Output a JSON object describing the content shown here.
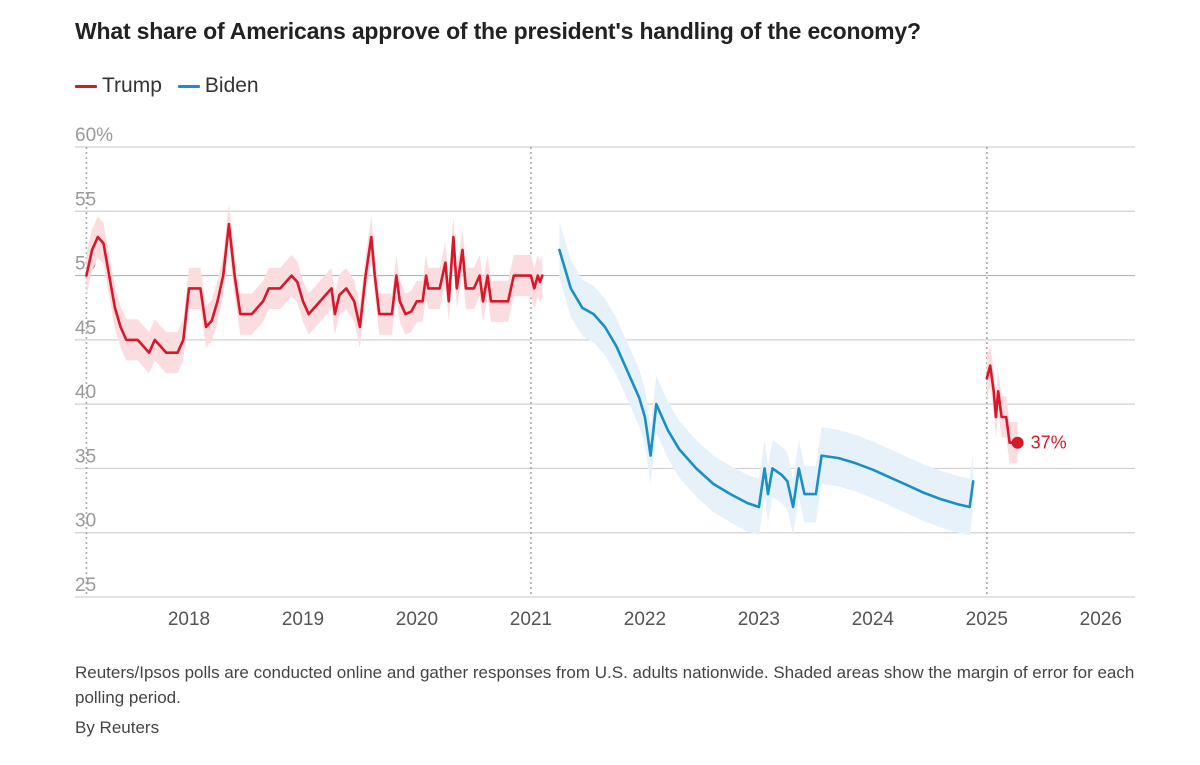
{
  "title": "What share of Americans approve of the president's handling of the economy?",
  "legend": [
    {
      "label": "Trump",
      "color": "#d7182a"
    },
    {
      "label": "Biden",
      "color": "#1a8fc4"
    }
  ],
  "footnote": "Reuters/Ipsos polls are conducted online and gather responses from U.S. adults nationwide. Shaded areas show the margin of error for each polling period.",
  "byline": "By Reuters",
  "chart_data": {
    "type": "line",
    "title": "What share of Americans approve of the president's handling of the economy?",
    "xlabel": "",
    "ylabel": "",
    "xlim": [
      2017.0,
      2026.3
    ],
    "ylim": [
      25,
      60
    ],
    "y_ticks": [
      {
        "value": 60,
        "label": "60%"
      },
      {
        "value": 55,
        "label": "55"
      },
      {
        "value": 50,
        "label": "50"
      },
      {
        "value": 45,
        "label": "45"
      },
      {
        "value": 40,
        "label": "40"
      },
      {
        "value": 35,
        "label": "35"
      },
      {
        "value": 30,
        "label": "30"
      },
      {
        "value": 25,
        "label": "25"
      }
    ],
    "x_ticks": [
      {
        "value": 2018,
        "label": "2018"
      },
      {
        "value": 2019,
        "label": "2019"
      },
      {
        "value": 2020,
        "label": "2020"
      },
      {
        "value": 2021,
        "label": "2021"
      },
      {
        "value": 2022,
        "label": "2022"
      },
      {
        "value": 2023,
        "label": "2023"
      },
      {
        "value": 2024,
        "label": "2024"
      },
      {
        "value": 2025,
        "label": "2025"
      },
      {
        "value": 2026,
        "label": "2026"
      }
    ],
    "grid": true,
    "legend_position": "top-left",
    "term_markers": [
      2017.1,
      2021.0,
      2025.0
    ],
    "end_label": {
      "series": "Trump",
      "x": 2025.27,
      "y": 37,
      "text": "37%"
    },
    "series": [
      {
        "name": "Trump",
        "color": "#d7182a",
        "band_color": "#fbdcdf",
        "margin": 1.6,
        "segments": [
          [
            [
              2017.1,
              50
            ],
            [
              2017.15,
              52
            ],
            [
              2017.2,
              53
            ],
            [
              2017.25,
              52.5
            ],
            [
              2017.3,
              50
            ],
            [
              2017.35,
              47.5
            ],
            [
              2017.4,
              46
            ],
            [
              2017.45,
              45
            ],
            [
              2017.55,
              45
            ],
            [
              2017.6,
              44.5
            ],
            [
              2017.65,
              44
            ],
            [
              2017.7,
              45
            ],
            [
              2017.75,
              44.5
            ],
            [
              2017.8,
              44
            ],
            [
              2017.9,
              44
            ],
            [
              2017.95,
              45
            ],
            [
              2018.0,
              49
            ],
            [
              2018.05,
              49
            ],
            [
              2018.1,
              49
            ],
            [
              2018.15,
              46
            ],
            [
              2018.2,
              46.5
            ],
            [
              2018.25,
              48
            ],
            [
              2018.3,
              50
            ],
            [
              2018.35,
              54
            ],
            [
              2018.4,
              50
            ],
            [
              2018.45,
              47
            ],
            [
              2018.55,
              47
            ],
            [
              2018.65,
              48
            ],
            [
              2018.7,
              49
            ],
            [
              2018.8,
              49
            ],
            [
              2018.9,
              50
            ],
            [
              2018.95,
              49.5
            ],
            [
              2019.0,
              48
            ],
            [
              2019.05,
              47
            ],
            [
              2019.15,
              48
            ],
            [
              2019.25,
              49
            ],
            [
              2019.28,
              47
            ],
            [
              2019.32,
              48.5
            ],
            [
              2019.38,
              49
            ],
            [
              2019.45,
              48
            ],
            [
              2019.5,
              46
            ],
            [
              2019.55,
              50
            ],
            [
              2019.6,
              53
            ],
            [
              2019.63,
              50
            ],
            [
              2019.67,
              47
            ],
            [
              2019.72,
              47
            ],
            [
              2019.78,
              47
            ],
            [
              2019.82,
              50
            ],
            [
              2019.85,
              48
            ],
            [
              2019.9,
              47
            ],
            [
              2019.95,
              47.2
            ],
            [
              2020.0,
              48
            ],
            [
              2020.05,
              48
            ],
            [
              2020.08,
              50
            ],
            [
              2020.1,
              49
            ],
            [
              2020.2,
              49
            ],
            [
              2020.25,
              51
            ],
            [
              2020.28,
              48
            ],
            [
              2020.32,
              53
            ],
            [
              2020.35,
              49
            ],
            [
              2020.4,
              52
            ],
            [
              2020.43,
              49
            ],
            [
              2020.5,
              49
            ],
            [
              2020.55,
              50
            ],
            [
              2020.58,
              48
            ],
            [
              2020.62,
              50
            ],
            [
              2020.65,
              48
            ],
            [
              2020.8,
              48
            ],
            [
              2020.85,
              50
            ],
            [
              2020.95,
              50
            ],
            [
              2021.0,
              50
            ],
            [
              2021.03,
              49
            ],
            [
              2021.06,
              50
            ],
            [
              2021.08,
              49.5
            ],
            [
              2021.1,
              50
            ]
          ],
          [
            [
              2025.0,
              42
            ],
            [
              2025.03,
              43
            ],
            [
              2025.06,
              41
            ],
            [
              2025.08,
              39
            ],
            [
              2025.1,
              41
            ],
            [
              2025.13,
              39
            ],
            [
              2025.17,
              39
            ],
            [
              2025.2,
              37
            ],
            [
              2025.27,
              37
            ]
          ]
        ]
      },
      {
        "name": "Biden",
        "color": "#1a8fc4",
        "band_color": "#e6f1fa",
        "margin": 2.2,
        "segments": [
          [
            [
              2021.25,
              52
            ],
            [
              2021.35,
              49
            ],
            [
              2021.45,
              47.5
            ],
            [
              2021.55,
              47
            ],
            [
              2021.65,
              46
            ],
            [
              2021.75,
              44.5
            ],
            [
              2021.85,
              42.5
            ],
            [
              2021.95,
              40.5
            ],
            [
              2022.0,
              39
            ],
            [
              2022.05,
              36
            ],
            [
              2022.1,
              40
            ],
            [
              2022.2,
              38
            ],
            [
              2022.3,
              36.5
            ],
            [
              2022.45,
              35
            ],
            [
              2022.6,
              33.8
            ],
            [
              2022.75,
              33
            ],
            [
              2022.9,
              32.3
            ],
            [
              2023.0,
              32
            ],
            [
              2023.05,
              35
            ],
            [
              2023.08,
              33
            ],
            [
              2023.12,
              35
            ],
            [
              2023.2,
              34.5
            ],
            [
              2023.25,
              34
            ],
            [
              2023.3,
              32
            ],
            [
              2023.35,
              35
            ],
            [
              2023.4,
              33
            ],
            [
              2023.45,
              33
            ],
            [
              2023.5,
              33
            ],
            [
              2023.55,
              36
            ],
            [
              2023.7,
              35.8
            ],
            [
              2023.85,
              35.4
            ],
            [
              2024.0,
              34.9
            ],
            [
              2024.15,
              34.3
            ],
            [
              2024.3,
              33.7
            ],
            [
              2024.45,
              33.1
            ],
            [
              2024.6,
              32.6
            ],
            [
              2024.75,
              32.2
            ],
            [
              2024.85,
              32
            ],
            [
              2024.88,
              34
            ]
          ]
        ]
      }
    ]
  }
}
